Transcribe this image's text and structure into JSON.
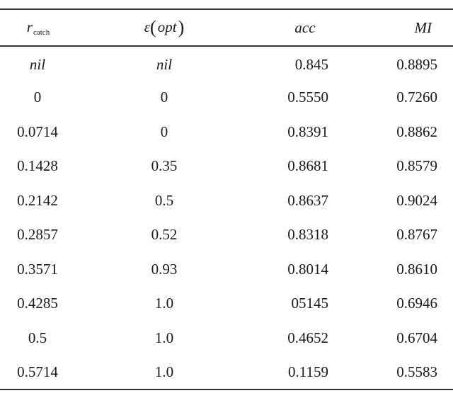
{
  "table": {
    "headers": {
      "col1_symbol": "r",
      "col1_subscript": "catch",
      "col2_symbol": "ε",
      "col2_paren_open": "(",
      "col2_arg": "opt",
      "col2_paren_close": ")",
      "col3": "acc",
      "col4": "MI"
    },
    "rows": [
      {
        "r_catch": "nil",
        "eps_opt": "nil",
        "acc": "0.845",
        "mi": "0.8895",
        "italic": true
      },
      {
        "r_catch": "0",
        "eps_opt": "0",
        "acc": "0.5550",
        "mi": "0.7260"
      },
      {
        "r_catch": "0.0714",
        "eps_opt": "0",
        "acc": "0.8391",
        "mi": "0.8862"
      },
      {
        "r_catch": "0.1428",
        "eps_opt": "0.35",
        "acc": "0.8681",
        "mi": "0.8579"
      },
      {
        "r_catch": "0.2142",
        "eps_opt": "0.5",
        "acc": "0.8637",
        "mi": "0.9024"
      },
      {
        "r_catch": "0.2857",
        "eps_opt": "0.52",
        "acc": "0.8318",
        "mi": "0.8767"
      },
      {
        "r_catch": "0.3571",
        "eps_opt": "0.93",
        "acc": "0.8014",
        "mi": "0.8610"
      },
      {
        "r_catch": "0.4285",
        "eps_opt": "1.0",
        "acc": "05145",
        "mi": "0.6946"
      },
      {
        "r_catch": "0.5",
        "eps_opt": "1.0",
        "acc": "0.4652",
        "mi": "0.6704"
      },
      {
        "r_catch": "0.5714",
        "eps_opt": "1.0",
        "acc": "0.1159",
        "mi": "0.5583"
      }
    ]
  }
}
